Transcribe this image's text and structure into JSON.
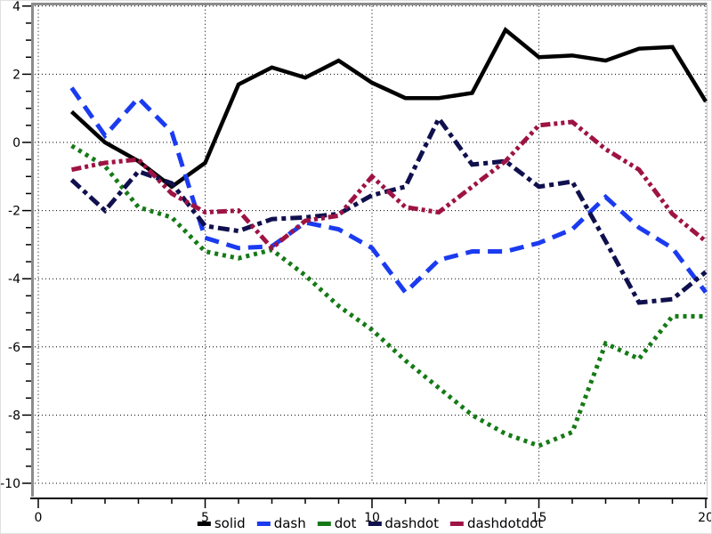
{
  "chart_data": {
    "type": "line",
    "title": "",
    "xlabel": "",
    "ylabel": "",
    "xlim": [
      0,
      20
    ],
    "ylim": [
      -10,
      4
    ],
    "x_major_ticks": [
      0,
      5,
      10,
      15,
      20
    ],
    "x_tick_labels": [
      "0",
      "5",
      "10",
      "15",
      "20"
    ],
    "x_minor_tick_step": 1,
    "y_major_ticks": [
      4,
      2,
      0,
      -2,
      -4,
      -6,
      -8,
      -10
    ],
    "y_tick_labels": [
      "4",
      "2",
      "0",
      "-2",
      "-4",
      "-6",
      "-8",
      "-10"
    ],
    "y_minor_tick_step": 0.5,
    "grid": {
      "style": "dotted",
      "color": "#000000",
      "at": "major-ticks"
    },
    "legend_position": "bottom-center",
    "x": [
      1,
      2,
      3,
      4,
      5,
      6,
      7,
      8,
      9,
      10,
      11,
      12,
      13,
      14,
      15,
      16,
      17,
      18,
      19,
      20
    ],
    "series": [
      {
        "name": "solid",
        "color": "#000000",
        "style": "solid",
        "stroke_width": 4.5,
        "values": [
          0.9,
          0.0,
          -0.55,
          -1.3,
          -0.6,
          1.7,
          2.2,
          1.9,
          2.4,
          1.75,
          1.3,
          1.3,
          1.45,
          3.3,
          2.5,
          2.55,
          2.4,
          2.75,
          2.8,
          1.2
        ]
      },
      {
        "name": "dash",
        "color": "#1b3bf0",
        "style": "dash",
        "stroke_width": 5,
        "values": [
          1.6,
          0.2,
          1.3,
          0.3,
          -2.8,
          -3.1,
          -3.05,
          -2.35,
          -2.55,
          -3.1,
          -4.4,
          -3.45,
          -3.2,
          -3.2,
          -2.95,
          -2.55,
          -1.6,
          -2.5,
          -3.1,
          -4.4
        ]
      },
      {
        "name": "dot",
        "color": "#157a16",
        "style": "dot",
        "stroke_width": 5,
        "values": [
          -0.1,
          -0.7,
          -1.9,
          -2.2,
          -3.2,
          -3.4,
          -3.15,
          -3.9,
          -4.8,
          -5.5,
          -6.4,
          -7.2,
          -8.0,
          -8.55,
          -8.9,
          -8.5,
          -5.9,
          -6.35,
          -5.1,
          -5.1
        ]
      },
      {
        "name": "dashdot",
        "color": "#10104e",
        "style": "dashdot",
        "stroke_width": 5,
        "values": [
          -1.1,
          -2.0,
          -0.85,
          -1.2,
          -2.45,
          -2.6,
          -2.25,
          -2.2,
          -2.1,
          -1.55,
          -1.3,
          0.7,
          -0.65,
          -0.55,
          -1.3,
          -1.15,
          -2.9,
          -4.7,
          -4.6,
          -3.8
        ]
      },
      {
        "name": "dashdotdot",
        "color": "#9e1344",
        "style": "dashdotdot",
        "stroke_width": 5,
        "values": [
          -0.8,
          -0.6,
          -0.5,
          -1.5,
          -2.05,
          -2.0,
          -3.1,
          -2.3,
          -2.15,
          -1.0,
          -1.9,
          -2.05,
          -1.3,
          -0.55,
          0.5,
          0.6,
          -0.2,
          -0.8,
          -2.1,
          -2.9
        ]
      }
    ]
  },
  "legend": {
    "items": [
      "solid",
      "dash",
      "dot",
      "dashdot",
      "dashdotdot"
    ]
  },
  "style": {
    "background": "#ffffff",
    "plot_background": "#ffffff",
    "frame_color": "#8c8c8c",
    "frame_right_color": "#cccccc",
    "axis_color": "#000000",
    "tick_label_color": "#000000",
    "tick_font_px": 14
  }
}
